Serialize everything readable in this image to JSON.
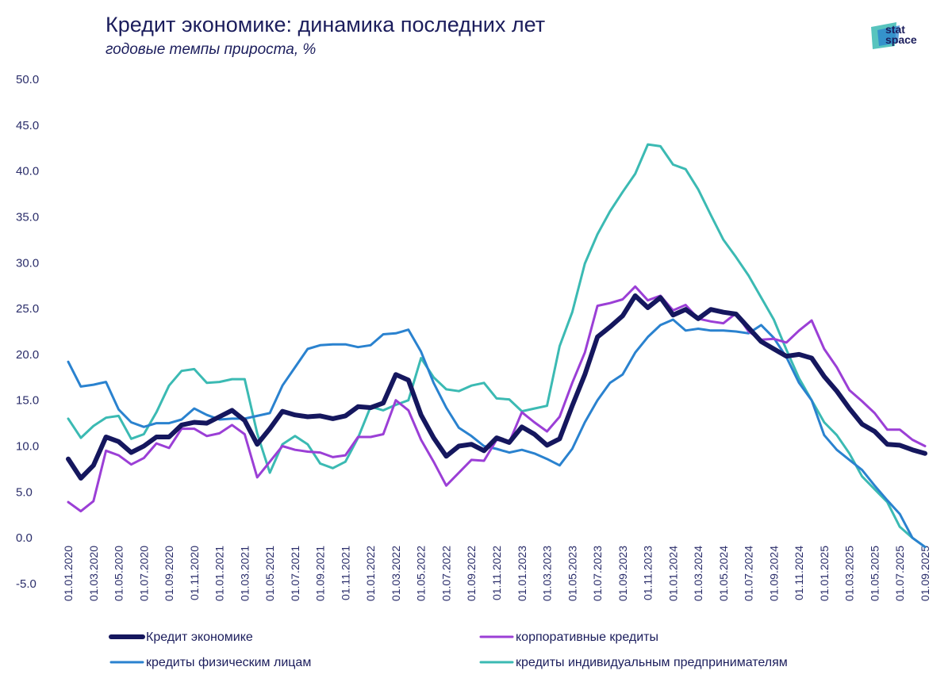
{
  "header": {
    "title": "Кредит экономике: динамика последних лет",
    "subtitle": "годовые темпы прироста, %"
  },
  "logo": {
    "line1": "stat",
    "line2": "space"
  },
  "colors": {
    "total": "#15175e",
    "corporate": "#9b3fd6",
    "individuals": "#2a82cf",
    "entrepreneurs": "#3bbab3",
    "text": "#1b1d5c"
  },
  "chart_data": {
    "type": "line",
    "title": "Кредит экономике: динамика последних лет",
    "subtitle": "годовые темпы прироста, %",
    "ylim": [
      -5,
      50
    ],
    "yticks": [
      "50.0",
      "45.0",
      "40.0",
      "35.0",
      "30.0",
      "25.0",
      "20.0",
      "15.0",
      "10.0",
      "5.0",
      "0.0",
      "-5.0"
    ],
    "ytick_values": [
      50,
      45,
      40,
      35,
      30,
      25,
      20,
      15,
      10,
      5,
      0,
      -5
    ],
    "xtick_labels": [
      "01.01.2020",
      "01.03.2020",
      "01.05.2020",
      "01.07.2020",
      "01.09.2020",
      "01.11.2020",
      "01.01.2021",
      "01.03.2021",
      "01.05.2021",
      "01.07.2021",
      "01.09.2021",
      "01.11.2021",
      "01.01.2022",
      "01.03.2022",
      "01.05.2022",
      "01.07.2022",
      "01.09.2022",
      "01.11.2022",
      "01.01.2023",
      "01.03.2023",
      "01.05.2023",
      "01.07.2023",
      "01.09.2023",
      "01.11.2023",
      "01.01.2024",
      "01.03.2024",
      "01.05.2024",
      "01.07.2024",
      "01.09.2024",
      "01.11.2024",
      "01.01.2025",
      "01.03.2025",
      "01.05.2025",
      "01.07.2025",
      "01.09.2025"
    ],
    "x_start": "01.01.2020",
    "period": "monthly",
    "series": [
      {
        "name": "Кредит экономике",
        "key": "total",
        "values": [
          8.6,
          6.5,
          7.9,
          11.0,
          10.5,
          9.3,
          10.0,
          11.0,
          11.0,
          12.3,
          12.6,
          12.5,
          13.2,
          13.9,
          12.8,
          10.2,
          11.9,
          13.8,
          13.4,
          13.2,
          13.3,
          13.0,
          13.3,
          14.3,
          14.2,
          14.7,
          17.8,
          17.2,
          13.4,
          10.9,
          8.9,
          10.0,
          10.2,
          9.5,
          10.9,
          10.4,
          12.1,
          11.3,
          10.1,
          10.8,
          14.4,
          17.8,
          21.9,
          23.0,
          24.2,
          26.4,
          25.1,
          26.2,
          24.3,
          24.9,
          23.9,
          24.9,
          24.6,
          24.4,
          22.9,
          21.4,
          20.6,
          19.8,
          20.0,
          19.6,
          17.6,
          16.0,
          14.1,
          12.4,
          11.6,
          10.2,
          10.1,
          9.6,
          9.2
        ]
      },
      {
        "name": "корпоративные кредиты",
        "key": "corporate",
        "values": [
          3.9,
          2.9,
          4.0,
          9.5,
          9.0,
          8.0,
          8.7,
          10.3,
          9.8,
          11.9,
          11.9,
          11.1,
          11.4,
          12.3,
          11.3,
          6.6,
          8.3,
          10.0,
          9.6,
          9.4,
          9.3,
          8.8,
          9.0,
          11.0,
          11.0,
          11.3,
          15.0,
          13.9,
          10.7,
          8.3,
          5.7,
          7.1,
          8.5,
          8.4,
          10.7,
          10.4,
          13.7,
          12.6,
          11.6,
          13.2,
          16.9,
          20.2,
          25.3,
          25.6,
          26.0,
          27.4,
          25.9,
          26.4,
          24.8,
          25.4,
          23.9,
          23.6,
          23.4,
          24.5,
          22.5,
          21.6,
          21.7,
          21.3,
          22.6,
          23.7,
          20.6,
          18.6,
          16.1,
          14.9,
          13.6,
          11.8,
          11.8,
          10.7,
          10.0
        ]
      },
      {
        "name": "кредиты физическим лицам",
        "key": "individuals",
        "values": [
          19.2,
          16.5,
          16.7,
          17.0,
          14.0,
          12.6,
          12.1,
          12.5,
          12.5,
          12.9,
          14.1,
          13.4,
          12.9,
          13.0,
          13.0,
          13.3,
          13.6,
          16.6,
          18.6,
          20.6,
          21.0,
          21.1,
          21.1,
          20.8,
          21.0,
          22.2,
          22.3,
          22.7,
          20.3,
          16.9,
          14.2,
          12.0,
          11.1,
          10.0,
          9.7,
          9.3,
          9.6,
          9.2,
          8.6,
          7.9,
          9.7,
          12.6,
          15.0,
          16.9,
          17.8,
          20.2,
          21.9,
          23.2,
          23.8,
          22.6,
          22.8,
          22.6,
          22.6,
          22.5,
          22.3,
          23.2,
          21.8,
          19.7,
          16.9,
          15.0,
          11.2,
          9.6,
          8.5,
          7.4,
          5.7,
          4.1,
          2.6,
          0.0,
          -1.0
        ]
      },
      {
        "name": "кредиты индивидуальным предпринимателям",
        "key": "entrepreneurs",
        "values": [
          13.0,
          10.9,
          12.2,
          13.1,
          13.3,
          10.8,
          11.3,
          13.7,
          16.6,
          18.2,
          18.4,
          16.9,
          17.0,
          17.3,
          17.3,
          11.4,
          7.1,
          10.2,
          11.1,
          10.2,
          8.1,
          7.6,
          8.3,
          10.9,
          14.3,
          13.9,
          14.5,
          15.0,
          19.6,
          17.5,
          16.2,
          16.0,
          16.6,
          16.9,
          15.2,
          15.1,
          13.8,
          14.1,
          14.4,
          20.9,
          24.6,
          29.9,
          33.1,
          35.6,
          37.7,
          39.7,
          42.9,
          42.7,
          40.7,
          40.2,
          38.0,
          35.2,
          32.5,
          30.6,
          28.6,
          26.2,
          23.8,
          20.5,
          17.4,
          15.0,
          12.6,
          11.2,
          9.2,
          6.7,
          5.3,
          3.9,
          1.2,
          0.0,
          -1.0
        ]
      }
    ],
    "legend": [
      {
        "label": "Кредит экономике",
        "key": "total"
      },
      {
        "label": "корпоративные кредиты",
        "key": "corporate"
      },
      {
        "label": "кредиты физическим лицам",
        "key": "individuals"
      },
      {
        "label": "кредиты индивидуальным предпринимателям",
        "key": "entrepreneurs"
      }
    ]
  }
}
